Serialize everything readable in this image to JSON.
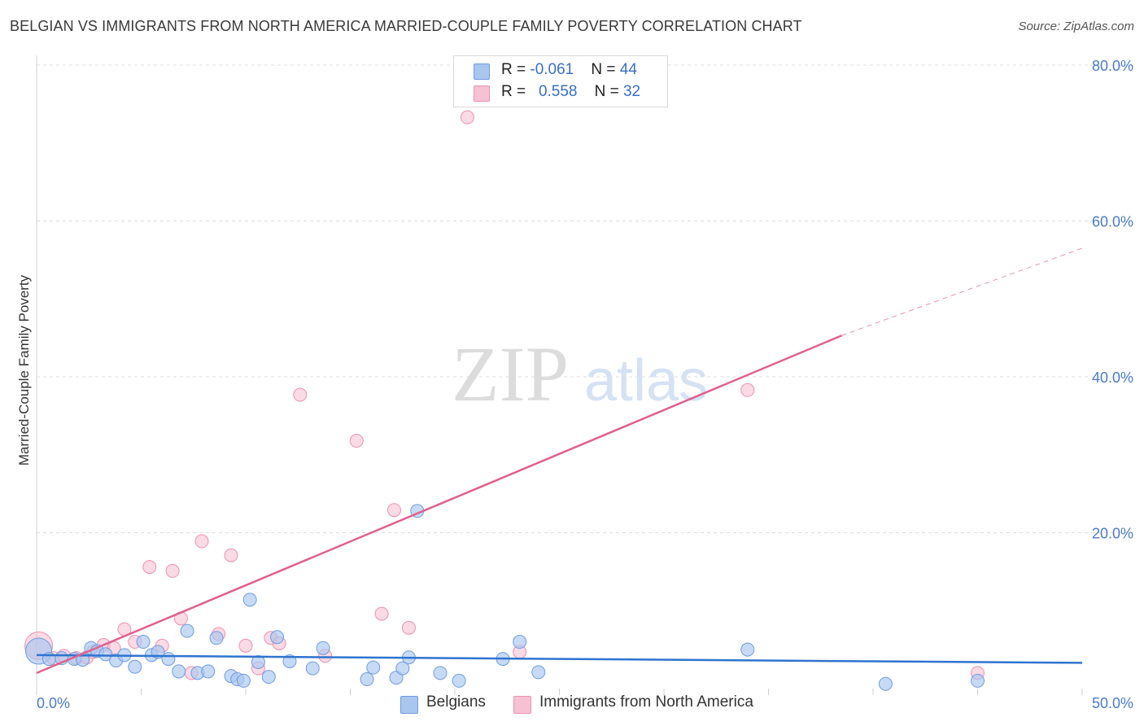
{
  "header": {
    "title": "BELGIAN VS IMMIGRANTS FROM NORTH AMERICA MARRIED-COUPLE FAMILY POVERTY CORRELATION CHART",
    "source": "Source: ZipAtlas.com"
  },
  "watermark": {
    "zip": "ZIP",
    "atlas": "atlas"
  },
  "legend_top": {
    "rows": [
      {
        "r_label": "R = ",
        "r_value": "-0.061",
        "n_label": "N = ",
        "n_value": "44"
      },
      {
        "r_label": "R = ",
        "r_value": "0.558",
        "n_label": "N = ",
        "n_value": "32"
      }
    ]
  },
  "legend_bottom": {
    "belgians": "Belgians",
    "immigrants": "Immigrants from North America"
  },
  "colors": {
    "blue_fill": "#a9c6ef",
    "blue_stroke": "#6f9be0",
    "blue_line": "#2f74d0",
    "pink_fill": "#f6c1d2",
    "pink_stroke": "#eb92b0",
    "pink_line": "#e0608c",
    "grid": "#dcdcdc",
    "tick_text": "#4a7cc9"
  },
  "chart_data": {
    "type": "scatter",
    "title": "BELGIAN VS IMMIGRANTS FROM NORTH AMERICA MARRIED-COUPLE FAMILY POVERTY CORRELATION CHART",
    "xlabel": "",
    "ylabel": "Married-Couple Family Poverty",
    "xlim": [
      0,
      50
    ],
    "ylim": [
      0,
      83
    ],
    "x_tick_labels": [
      "0.0%",
      "50.0%"
    ],
    "y_ticks": [
      20,
      40,
      60,
      80
    ],
    "y_tick_labels": [
      "20.0%",
      "40.0%",
      "60.0%",
      "80.0%"
    ],
    "grid": true,
    "legend_placement": "bottom-center",
    "series": [
      {
        "name": "Belgians",
        "color": "blue",
        "r": -0.061,
        "n": 44,
        "points": [
          [
            0.1,
            4.8
          ],
          [
            0.6,
            3.8
          ],
          [
            1.2,
            3.9
          ],
          [
            1.8,
            3.8
          ],
          [
            2.2,
            3.7
          ],
          [
            2.6,
            5.2
          ],
          [
            2.9,
            4.8
          ],
          [
            3.3,
            4.4
          ],
          [
            3.8,
            3.6
          ],
          [
            4.2,
            4.3
          ],
          [
            4.7,
            2.8
          ],
          [
            5.1,
            6.0
          ],
          [
            5.5,
            4.3
          ],
          [
            5.8,
            4.7
          ],
          [
            6.3,
            3.8
          ],
          [
            6.8,
            2.2
          ],
          [
            7.2,
            7.4
          ],
          [
            7.7,
            2.0
          ],
          [
            8.2,
            2.2
          ],
          [
            8.6,
            6.5
          ],
          [
            9.3,
            1.6
          ],
          [
            9.6,
            1.2
          ],
          [
            9.9,
            1.0
          ],
          [
            10.2,
            11.4
          ],
          [
            10.6,
            3.4
          ],
          [
            11.1,
            1.5
          ],
          [
            11.5,
            6.6
          ],
          [
            12.1,
            3.5
          ],
          [
            13.2,
            2.6
          ],
          [
            13.7,
            5.2
          ],
          [
            15.8,
            1.2
          ],
          [
            16.1,
            2.7
          ],
          [
            17.2,
            1.4
          ],
          [
            17.5,
            2.6
          ],
          [
            17.8,
            4.0
          ],
          [
            18.2,
            22.8
          ],
          [
            19.3,
            2.0
          ],
          [
            20.2,
            1.0
          ],
          [
            22.3,
            3.8
          ],
          [
            23.1,
            6.0
          ],
          [
            24.0,
            2.1
          ],
          [
            34.0,
            5.0
          ],
          [
            40.6,
            0.6
          ],
          [
            45.0,
            1.0
          ]
        ]
      },
      {
        "name": "Immigrants from North America",
        "color": "pink",
        "r": 0.558,
        "n": 32,
        "points": [
          [
            0.1,
            5.5
          ],
          [
            0.8,
            3.9
          ],
          [
            1.3,
            4.2
          ],
          [
            1.9,
            3.9
          ],
          [
            2.4,
            4.0
          ],
          [
            2.7,
            4.7
          ],
          [
            3.2,
            5.6
          ],
          [
            3.7,
            5.2
          ],
          [
            4.2,
            7.6
          ],
          [
            4.7,
            6.0
          ],
          [
            5.4,
            15.6
          ],
          [
            6.0,
            5.5
          ],
          [
            6.5,
            15.1
          ],
          [
            6.9,
            9.0
          ],
          [
            7.4,
            2.0
          ],
          [
            7.9,
            18.9
          ],
          [
            8.7,
            7.0
          ],
          [
            9.3,
            17.1
          ],
          [
            10.0,
            5.5
          ],
          [
            10.6,
            2.6
          ],
          [
            11.2,
            6.5
          ],
          [
            11.6,
            5.8
          ],
          [
            12.6,
            37.7
          ],
          [
            13.8,
            4.2
          ],
          [
            15.3,
            31.8
          ],
          [
            16.5,
            9.6
          ],
          [
            17.1,
            22.9
          ],
          [
            17.8,
            7.8
          ],
          [
            20.6,
            73.3
          ],
          [
            23.1,
            4.7
          ],
          [
            34.0,
            38.3
          ],
          [
            45.0,
            2.0
          ]
        ]
      }
    ],
    "trend_lines": [
      {
        "series": "Belgians",
        "x0": 0,
        "y0": 4.3,
        "x1": 50,
        "y1": 3.3,
        "style": "solid"
      },
      {
        "series": "Immigrants from North America",
        "x0": 0,
        "y0": 2.0,
        "x1": 38.5,
        "y1": 45.3,
        "style": "solid"
      },
      {
        "series": "Immigrants from North America",
        "x0": 38.5,
        "y0": 45.3,
        "x1": 50,
        "y1": 56.5,
        "style": "dashed"
      }
    ]
  }
}
